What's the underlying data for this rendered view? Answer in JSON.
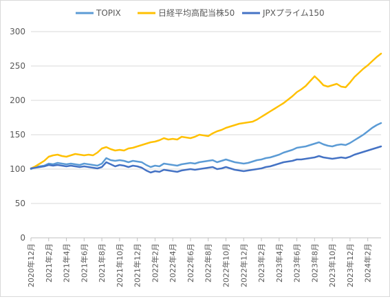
{
  "chart_data": {
    "type": "line",
    "xlabel": "",
    "ylabel": "",
    "ylim": [
      0,
      300
    ],
    "yticks": [
      0,
      50,
      100,
      150,
      200,
      250,
      300
    ],
    "grid": true,
    "legend_position": "top",
    "categories": [
      "2020年12月",
      "2021年2月",
      "2021年4月",
      "2021年6月",
      "2021年8月",
      "2021年10月",
      "2021年12月",
      "2022年2月",
      "2022年4月",
      "2022年6月",
      "2022年8月",
      "2022年10月",
      "2022年12月",
      "2023年2月",
      "2023年4月",
      "2023年6月",
      "2023年8月",
      "2023年10月",
      "2023年12月",
      "2024年2月"
    ],
    "series": [
      {
        "name": "TOPIX",
        "color": "#5b9bd5",
        "points": [
          [
            0,
            100
          ],
          [
            0.25,
            103
          ],
          [
            0.5,
            104
          ],
          [
            0.75,
            105
          ],
          [
            1,
            108
          ],
          [
            1.25,
            107
          ],
          [
            1.5,
            109
          ],
          [
            1.75,
            108
          ],
          [
            2,
            107
          ],
          [
            2.25,
            108
          ],
          [
            2.5,
            107
          ],
          [
            2.75,
            106
          ],
          [
            3,
            108
          ],
          [
            3.25,
            107
          ],
          [
            3.5,
            106
          ],
          [
            3.75,
            105
          ],
          [
            4,
            108
          ],
          [
            4.25,
            116
          ],
          [
            4.5,
            113
          ],
          [
            4.75,
            112
          ],
          [
            5,
            113
          ],
          [
            5.25,
            112
          ],
          [
            5.5,
            110
          ],
          [
            5.75,
            112
          ],
          [
            6,
            111
          ],
          [
            6.25,
            110
          ],
          [
            6.5,
            106
          ],
          [
            6.75,
            103
          ],
          [
            7,
            105
          ],
          [
            7.25,
            104
          ],
          [
            7.5,
            108
          ],
          [
            7.75,
            107
          ],
          [
            8,
            106
          ],
          [
            8.25,
            105
          ],
          [
            8.5,
            107
          ],
          [
            8.75,
            108
          ],
          [
            9,
            109
          ],
          [
            9.25,
            108
          ],
          [
            9.5,
            110
          ],
          [
            9.75,
            111
          ],
          [
            10,
            112
          ],
          [
            10.25,
            113
          ],
          [
            10.5,
            110
          ],
          [
            10.75,
            112
          ],
          [
            11,
            114
          ],
          [
            11.25,
            112
          ],
          [
            11.5,
            110
          ],
          [
            11.75,
            109
          ],
          [
            12,
            108
          ],
          [
            12.25,
            109
          ],
          [
            12.5,
            111
          ],
          [
            12.75,
            113
          ],
          [
            13,
            114
          ],
          [
            13.25,
            116
          ],
          [
            13.5,
            117
          ],
          [
            13.75,
            119
          ],
          [
            14,
            121
          ],
          [
            14.25,
            124
          ],
          [
            14.5,
            126
          ],
          [
            14.75,
            128
          ],
          [
            15,
            131
          ],
          [
            15.25,
            132
          ],
          [
            15.5,
            133
          ],
          [
            15.75,
            135
          ],
          [
            16,
            137
          ],
          [
            16.25,
            139
          ],
          [
            16.5,
            136
          ],
          [
            16.75,
            134
          ],
          [
            17,
            133
          ],
          [
            17.25,
            135
          ],
          [
            17.5,
            136
          ],
          [
            17.75,
            135
          ],
          [
            18,
            138
          ],
          [
            18.25,
            142
          ],
          [
            18.5,
            146
          ],
          [
            18.75,
            150
          ],
          [
            19,
            155
          ],
          [
            19.25,
            160
          ],
          [
            19.5,
            164
          ],
          [
            19.75,
            167
          ]
        ]
      },
      {
        "name": "日経平均高配当株50",
        "color": "#ffc000",
        "points": [
          [
            0,
            101
          ],
          [
            0.25,
            104
          ],
          [
            0.5,
            108
          ],
          [
            0.75,
            112
          ],
          [
            1,
            118
          ],
          [
            1.25,
            120
          ],
          [
            1.5,
            121
          ],
          [
            1.75,
            119
          ],
          [
            2,
            118
          ],
          [
            2.25,
            120
          ],
          [
            2.5,
            122
          ],
          [
            2.75,
            121
          ],
          [
            3,
            120
          ],
          [
            3.25,
            121
          ],
          [
            3.5,
            120
          ],
          [
            3.75,
            124
          ],
          [
            4,
            130
          ],
          [
            4.25,
            132
          ],
          [
            4.5,
            129
          ],
          [
            4.75,
            127
          ],
          [
            5,
            128
          ],
          [
            5.25,
            127
          ],
          [
            5.5,
            130
          ],
          [
            5.75,
            131
          ],
          [
            6,
            133
          ],
          [
            6.25,
            135
          ],
          [
            6.5,
            137
          ],
          [
            6.75,
            139
          ],
          [
            7,
            140
          ],
          [
            7.25,
            142
          ],
          [
            7.5,
            145
          ],
          [
            7.75,
            143
          ],
          [
            8,
            144
          ],
          [
            8.25,
            143
          ],
          [
            8.5,
            147
          ],
          [
            8.75,
            146
          ],
          [
            9,
            145
          ],
          [
            9.25,
            147
          ],
          [
            9.5,
            150
          ],
          [
            9.75,
            149
          ],
          [
            10,
            148
          ],
          [
            10.25,
            152
          ],
          [
            10.5,
            155
          ],
          [
            10.75,
            157
          ],
          [
            11,
            160
          ],
          [
            11.25,
            162
          ],
          [
            11.5,
            164
          ],
          [
            11.75,
            166
          ],
          [
            12,
            167
          ],
          [
            12.25,
            168
          ],
          [
            12.5,
            169
          ],
          [
            12.75,
            172
          ],
          [
            13,
            176
          ],
          [
            13.25,
            180
          ],
          [
            13.5,
            184
          ],
          [
            13.75,
            188
          ],
          [
            14,
            192
          ],
          [
            14.25,
            196
          ],
          [
            14.5,
            201
          ],
          [
            14.75,
            206
          ],
          [
            15,
            212
          ],
          [
            15.25,
            216
          ],
          [
            15.5,
            221
          ],
          [
            15.75,
            228
          ],
          [
            16,
            235
          ],
          [
            16.25,
            229
          ],
          [
            16.5,
            222
          ],
          [
            16.75,
            220
          ],
          [
            17,
            222
          ],
          [
            17.25,
            224
          ],
          [
            17.5,
            220
          ],
          [
            17.75,
            219
          ],
          [
            18,
            226
          ],
          [
            18.25,
            234
          ],
          [
            18.5,
            240
          ],
          [
            18.75,
            246
          ],
          [
            19,
            251
          ],
          [
            19.25,
            257
          ],
          [
            19.5,
            263
          ],
          [
            19.75,
            268
          ]
        ]
      },
      {
        "name": "JPXプライム150",
        "color": "#4472c4",
        "points": [
          [
            0,
            101
          ],
          [
            0.25,
            102
          ],
          [
            0.5,
            103
          ],
          [
            0.75,
            104
          ],
          [
            1,
            106
          ],
          [
            1.25,
            105
          ],
          [
            1.5,
            106
          ],
          [
            1.75,
            105
          ],
          [
            2,
            104
          ],
          [
            2.25,
            105
          ],
          [
            2.5,
            104
          ],
          [
            2.75,
            103
          ],
          [
            3,
            104
          ],
          [
            3.25,
            103
          ],
          [
            3.5,
            102
          ],
          [
            3.75,
            101
          ],
          [
            4,
            103
          ],
          [
            4.25,
            110
          ],
          [
            4.5,
            107
          ],
          [
            4.75,
            104
          ],
          [
            5,
            106
          ],
          [
            5.25,
            105
          ],
          [
            5.5,
            103
          ],
          [
            5.75,
            105
          ],
          [
            6,
            104
          ],
          [
            6.25,
            102
          ],
          [
            6.5,
            98
          ],
          [
            6.75,
            95
          ],
          [
            7,
            97
          ],
          [
            7.25,
            96
          ],
          [
            7.5,
            99
          ],
          [
            7.75,
            98
          ],
          [
            8,
            97
          ],
          [
            8.25,
            96
          ],
          [
            8.5,
            98
          ],
          [
            8.75,
            99
          ],
          [
            9,
            100
          ],
          [
            9.25,
            99
          ],
          [
            9.5,
            100
          ],
          [
            9.75,
            101
          ],
          [
            10,
            102
          ],
          [
            10.25,
            103
          ],
          [
            10.5,
            100
          ],
          [
            10.75,
            101
          ],
          [
            11,
            103
          ],
          [
            11.25,
            101
          ],
          [
            11.5,
            99
          ],
          [
            11.75,
            98
          ],
          [
            12,
            97
          ],
          [
            12.25,
            98
          ],
          [
            12.5,
            99
          ],
          [
            12.75,
            100
          ],
          [
            13,
            101
          ],
          [
            13.25,
            103
          ],
          [
            13.5,
            104
          ],
          [
            13.75,
            106
          ],
          [
            14,
            108
          ],
          [
            14.25,
            110
          ],
          [
            14.5,
            111
          ],
          [
            14.75,
            112
          ],
          [
            15,
            114
          ],
          [
            15.25,
            114
          ],
          [
            15.5,
            115
          ],
          [
            15.75,
            116
          ],
          [
            16,
            117
          ],
          [
            16.25,
            119
          ],
          [
            16.5,
            117
          ],
          [
            16.75,
            116
          ],
          [
            17,
            115
          ],
          [
            17.25,
            116
          ],
          [
            17.5,
            117
          ],
          [
            17.75,
            116
          ],
          [
            18,
            118
          ],
          [
            18.25,
            121
          ],
          [
            18.5,
            123
          ],
          [
            18.75,
            125
          ],
          [
            19,
            127
          ],
          [
            19.25,
            129
          ],
          [
            19.5,
            131
          ],
          [
            19.75,
            133
          ]
        ]
      }
    ]
  }
}
